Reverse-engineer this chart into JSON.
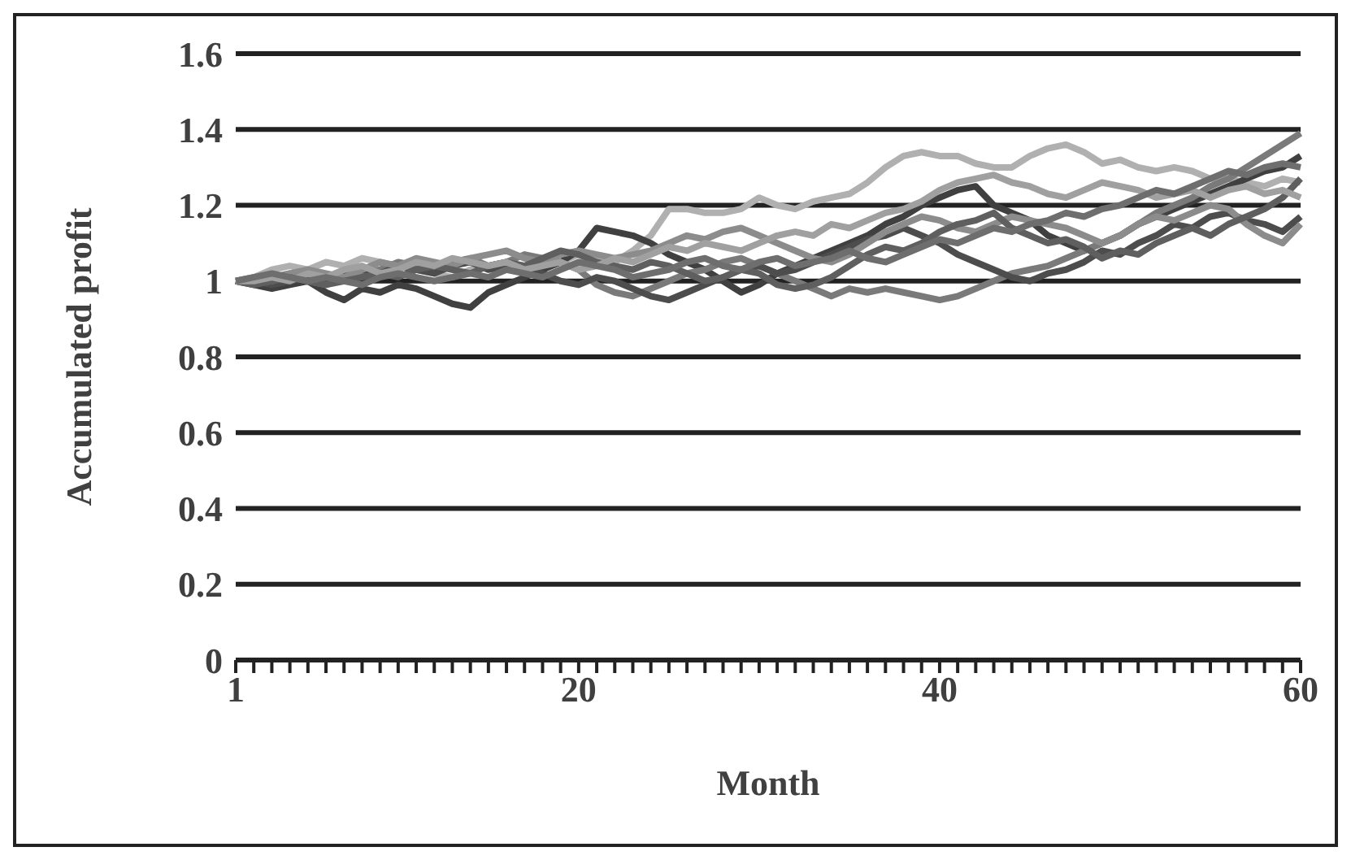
{
  "chart_data": {
    "type": "line",
    "xlabel": "Month",
    "ylabel": "Accumulated profit",
    "categories": [
      "1",
      null,
      null,
      null,
      null,
      null,
      null,
      null,
      null,
      null,
      null,
      null,
      null,
      null,
      null,
      null,
      null,
      null,
      null,
      "20",
      null,
      null,
      null,
      null,
      null,
      null,
      null,
      null,
      null,
      null,
      null,
      null,
      null,
      null,
      null,
      null,
      null,
      null,
      null,
      "40",
      null,
      null,
      null,
      null,
      null,
      null,
      null,
      null,
      null,
      null,
      null,
      null,
      null,
      null,
      null,
      null,
      null,
      null,
      null,
      "60"
    ],
    "ylim": [
      0,
      1.6
    ],
    "yticks": [
      0,
      0.2,
      0.4,
      0.6,
      0.8,
      1,
      1.2,
      1.4,
      1.6
    ],
    "grid": "y",
    "legend": false,
    "marker": "none",
    "line_style": "solid",
    "series": [
      {
        "color": "#b0b0b0",
        "values": [
          1.0,
          1.01,
          1.03,
          1.04,
          1.03,
          1.05,
          1.04,
          1.06,
          1.05,
          1.04,
          1.03,
          1.02,
          1.01,
          1.03,
          1.04,
          1.05,
          1.04,
          1.06,
          1.05,
          1.07,
          1.06,
          1.05,
          1.08,
          1.12,
          1.19,
          1.19,
          1.18,
          1.18,
          1.19,
          1.22,
          1.2,
          1.19,
          1.21,
          1.22,
          1.23,
          1.26,
          1.3,
          1.33,
          1.34,
          1.33,
          1.33,
          1.31,
          1.3,
          1.3,
          1.33,
          1.35,
          1.36,
          1.34,
          1.31,
          1.32,
          1.3,
          1.29,
          1.3,
          1.29,
          1.27,
          1.27,
          1.26,
          1.25,
          1.27,
          1.26
        ]
      },
      {
        "color": "#404040",
        "values": [
          1.0,
          0.99,
          0.98,
          0.99,
          1.0,
          0.97,
          0.95,
          0.98,
          0.97,
          0.99,
          0.98,
          0.96,
          0.94,
          0.93,
          0.97,
          0.99,
          1.01,
          1.03,
          1.05,
          1.08,
          1.14,
          1.13,
          1.12,
          1.1,
          1.07,
          1.05,
          1.03,
          1.0,
          0.97,
          0.99,
          1.02,
          1.04,
          1.06,
          1.08,
          1.1,
          1.12,
          1.15,
          1.17,
          1.2,
          1.22,
          1.24,
          1.25,
          1.2,
          1.18,
          1.16,
          1.12,
          1.1,
          1.08,
          1.1,
          1.12,
          1.15,
          1.17,
          1.19,
          1.21,
          1.23,
          1.25,
          1.27,
          1.29,
          1.3,
          1.33
        ]
      },
      {
        "color": "#7a7a7a",
        "values": [
          1.0,
          1.0,
          1.01,
          1.02,
          1.0,
          0.99,
          1.01,
          1.02,
          1.03,
          1.05,
          1.04,
          1.03,
          1.05,
          1.06,
          1.04,
          1.05,
          1.07,
          1.06,
          1.05,
          1.03,
          0.99,
          0.97,
          0.96,
          0.98,
          1.0,
          1.02,
          1.03,
          1.05,
          1.06,
          1.04,
          1.02,
          1.0,
          0.98,
          0.96,
          0.98,
          0.97,
          0.98,
          0.97,
          0.96,
          0.95,
          0.96,
          0.98,
          1.0,
          1.02,
          1.03,
          1.04,
          1.06,
          1.08,
          1.1,
          1.12,
          1.15,
          1.18,
          1.2,
          1.22,
          1.25,
          1.27,
          1.3,
          1.33,
          1.36,
          1.39
        ]
      },
      {
        "color": "#4d4d4d",
        "values": [
          1.0,
          1.0,
          0.99,
          1.0,
          1.01,
          1.0,
          1.02,
          1.03,
          1.02,
          1.04,
          1.03,
          1.02,
          1.04,
          1.05,
          1.03,
          1.04,
          1.03,
          1.02,
          1.0,
          0.99,
          1.01,
          1.0,
          0.98,
          0.96,
          0.95,
          0.97,
          0.99,
          1.01,
          1.03,
          1.04,
          1.02,
          1.03,
          1.05,
          1.07,
          1.09,
          1.11,
          1.12,
          1.14,
          1.12,
          1.1,
          1.07,
          1.05,
          1.03,
          1.01,
          1.0,
          1.02,
          1.03,
          1.05,
          1.08,
          1.07,
          1.1,
          1.12,
          1.15,
          1.14,
          1.17,
          1.18,
          1.16,
          1.15,
          1.13,
          1.17
        ]
      },
      {
        "color": "#8c8c8c",
        "values": [
          1.0,
          1.01,
          1.0,
          1.02,
          1.03,
          1.02,
          1.01,
          1.03,
          1.05,
          1.04,
          1.06,
          1.05,
          1.04,
          1.06,
          1.07,
          1.08,
          1.06,
          1.05,
          1.07,
          1.08,
          1.07,
          1.06,
          1.07,
          1.08,
          1.1,
          1.12,
          1.11,
          1.13,
          1.14,
          1.12,
          1.1,
          1.08,
          1.06,
          1.05,
          1.07,
          1.1,
          1.13,
          1.15,
          1.17,
          1.16,
          1.14,
          1.13,
          1.15,
          1.17,
          1.16,
          1.15,
          1.14,
          1.12,
          1.1,
          1.12,
          1.15,
          1.17,
          1.16,
          1.18,
          1.2,
          1.19,
          1.15,
          1.12,
          1.1,
          1.15
        ]
      },
      {
        "color": "#5f5f5f",
        "values": [
          1.0,
          0.99,
          1.0,
          1.01,
          1.0,
          0.99,
          1.0,
          1.01,
          1.02,
          1.01,
          1.03,
          1.04,
          1.03,
          1.02,
          1.04,
          1.05,
          1.04,
          1.06,
          1.08,
          1.07,
          1.05,
          1.04,
          1.03,
          1.05,
          1.04,
          1.02,
          1.0,
          1.01,
          1.03,
          1.02,
          0.99,
          0.98,
          0.99,
          1.01,
          1.04,
          1.07,
          1.09,
          1.08,
          1.1,
          1.13,
          1.15,
          1.16,
          1.18,
          1.14,
          1.12,
          1.1,
          1.11,
          1.09,
          1.06,
          1.08,
          1.07,
          1.1,
          1.12,
          1.14,
          1.12,
          1.15,
          1.17,
          1.19,
          1.22,
          1.27
        ]
      },
      {
        "color": "#a0a0a0",
        "values": [
          1.0,
          1.0,
          1.01,
          1.0,
          1.02,
          1.01,
          1.03,
          1.04,
          1.02,
          1.03,
          1.05,
          1.04,
          1.06,
          1.05,
          1.04,
          1.05,
          1.03,
          1.04,
          1.05,
          1.03,
          1.04,
          1.06,
          1.05,
          1.07,
          1.09,
          1.08,
          1.1,
          1.09,
          1.08,
          1.1,
          1.12,
          1.13,
          1.12,
          1.15,
          1.14,
          1.16,
          1.18,
          1.19,
          1.21,
          1.24,
          1.26,
          1.27,
          1.28,
          1.26,
          1.25,
          1.23,
          1.22,
          1.24,
          1.26,
          1.25,
          1.24,
          1.22,
          1.23,
          1.24,
          1.22,
          1.24,
          1.25,
          1.23,
          1.24,
          1.22
        ]
      },
      {
        "color": "#6e6e6e",
        "values": [
          1.0,
          1.01,
          1.02,
          1.01,
          1.0,
          1.01,
          1.0,
          0.99,
          1.01,
          1.02,
          1.01,
          1.0,
          1.01,
          1.02,
          1.01,
          1.03,
          1.02,
          1.01,
          1.03,
          1.05,
          1.04,
          1.03,
          1.01,
          1.02,
          1.03,
          1.05,
          1.06,
          1.04,
          1.03,
          1.05,
          1.06,
          1.04,
          1.05,
          1.06,
          1.08,
          1.06,
          1.05,
          1.07,
          1.09,
          1.11,
          1.1,
          1.12,
          1.14,
          1.13,
          1.15,
          1.16,
          1.18,
          1.17,
          1.19,
          1.2,
          1.22,
          1.24,
          1.23,
          1.25,
          1.27,
          1.29,
          1.28,
          1.3,
          1.31,
          1.3
        ]
      }
    ]
  }
}
